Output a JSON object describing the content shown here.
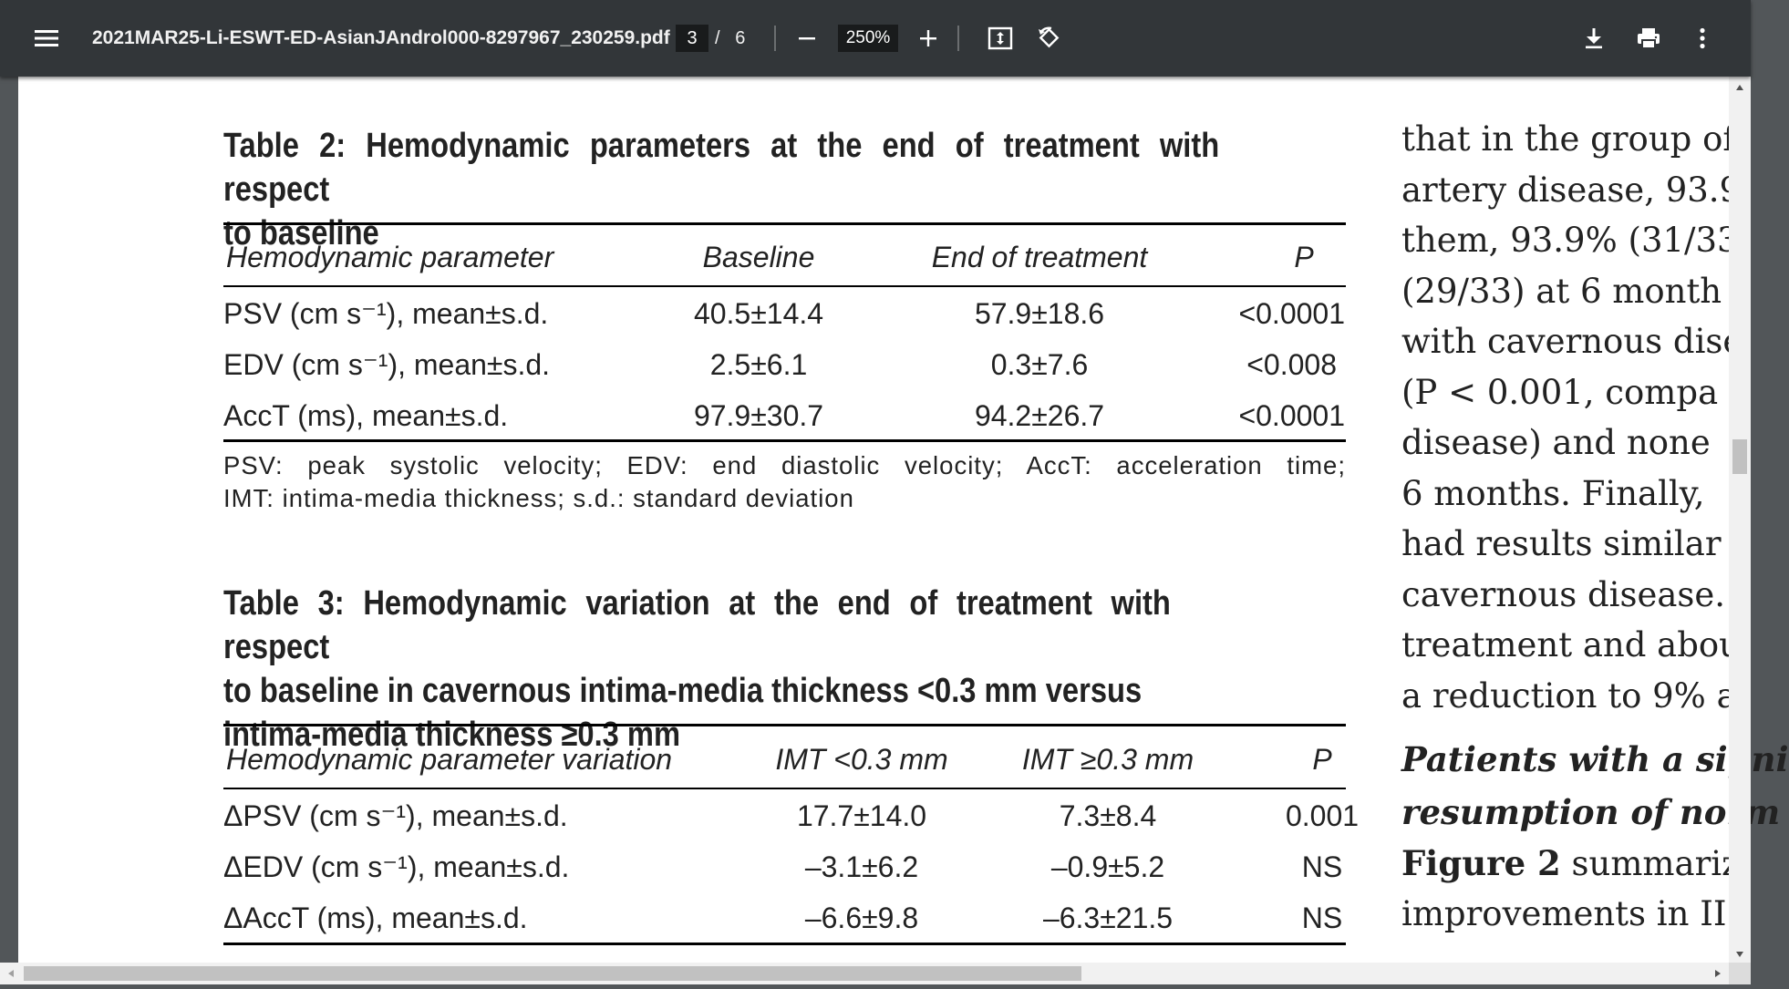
{
  "toolbar": {
    "menu_icon": "hamburger-menu-icon",
    "filename": "2021MAR25-Li-ESWT-ED-AsianJAndrol000-8297967_230259.pdf",
    "current_page": "3",
    "page_separator": "/",
    "total_pages": "6",
    "zoom_level": "250%",
    "icons": [
      "minus-icon",
      "plus-icon",
      "fit-to-page-icon",
      "rotate-icon",
      "download-icon",
      "print-icon",
      "more-vert-icon"
    ]
  },
  "table2": {
    "title_line1": "Table 2: Hemodynamic parameters at the end of treatment with respect",
    "title_line2": "to baseline",
    "headers": [
      "Hemodynamic parameter",
      "Baseline",
      "End of treatment",
      "P"
    ],
    "rows": [
      {
        "param": "PSV (cm s⁻¹), mean±s.d.",
        "baseline": "40.5±14.4",
        "end": "57.9±18.6",
        "p": "<0.0001"
      },
      {
        "param": "EDV (cm s⁻¹), mean±s.d.",
        "baseline": "2.5±6.1",
        "end": "0.3±7.6",
        "p": "<0.008"
      },
      {
        "param": "AccT (ms), mean±s.d.",
        "baseline": "97.9±30.7",
        "end": "94.2±26.7",
        "p": "<0.0001"
      }
    ],
    "footnote_line1": "PSV: peak systolic velocity; EDV: end diastolic velocity; AccT: acceleration time;",
    "footnote_line2": "IMT: intima-media thickness; s.d.: standard deviation"
  },
  "table3": {
    "title_line1": "Table 3: Hemodynamic variation at the end of treatment with respect",
    "title_line2": "to baseline in cavernous intima-media thickness <0.3 mm versus",
    "title_line3": "intima-media thickness ≥0.3 mm",
    "headers": [
      "Hemodynamic parameter variation",
      "IMT <0.3 mm",
      "IMT ≥0.3 mm",
      "P"
    ],
    "rows": [
      {
        "param": "ΔPSV (cm s⁻¹), mean±s.d.",
        "imt_lt": "17.7±14.0",
        "imt_ge": "7.3±8.4",
        "p": "0.001"
      },
      {
        "param": "ΔEDV (cm s⁻¹), mean±s.d.",
        "imt_lt": "–3.1±6.2",
        "imt_ge": "–0.9±5.2",
        "p": "NS"
      },
      {
        "param": "ΔAccT (ms), mean±s.d.",
        "imt_lt": "–6.6±9.8",
        "imt_ge": "–6.3±21.5",
        "p": "NS"
      }
    ]
  },
  "right_column": {
    "lines": [
      "that in the group of",
      "artery disease, 93.9",
      "them, 93.9% (31/33",
      "(29/33) at 6 month",
      "with cavernous dise",
      "(P < 0.001, compa",
      "disease) and none",
      "6 months. Finally,",
      "had results similar",
      "cavernous disease.",
      "treatment and abou",
      "a reduction to 9% a"
    ],
    "heading_line1": "Patients with a signi",
    "heading_line2": "resumption of norm",
    "figure_ref": "Figure 2",
    "figure_rest": " summariz",
    "last_line": "improvements in II"
  }
}
